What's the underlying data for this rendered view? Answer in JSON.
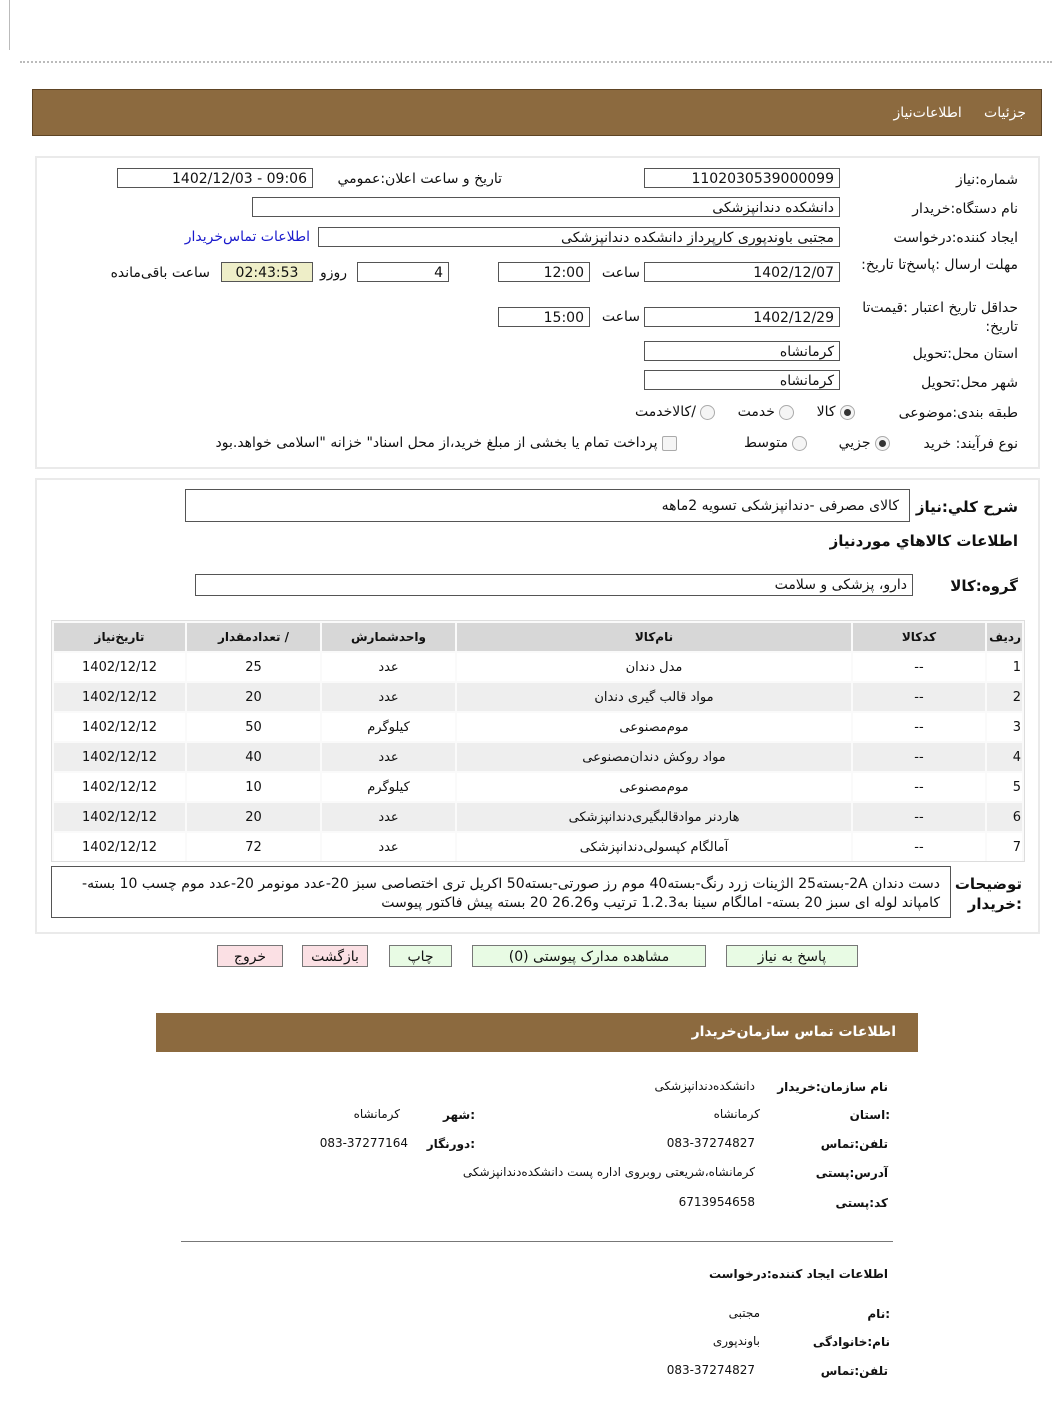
{
  "header": {
    "tabs": [
      "جزئیات",
      "اطلاعات‌نیاز"
    ]
  },
  "form": {
    "need_number_label": "شماره:نیاز",
    "need_number": "1102030539000099",
    "announce_label": "تاریخ و ساعت اعلان:عمومي",
    "announce_value": "1402/12/03 - 09:06",
    "buyer_label": "نام دستگاه:خریدار",
    "buyer": "دانشکده دندانپزشکی",
    "creator_label": "ایجاد کننده:درخواست",
    "creator": "مجتبی  باوندپوری کارپرداز دانشکده دندانپزشکی",
    "contact_link": "اطلاعات تماس‌خریدار",
    "deadline_label": "مهلت ارسال :پاسخ‌تا تاریخ:",
    "deadline_date": "1402/12/07",
    "time_label": "ساعت",
    "deadline_time": "12:00",
    "days": "4",
    "days_label": "روزو",
    "remaining": "02:43:53",
    "remaining_label": "ساعت باقی‌مانده",
    "validity_label": "حداقل تاریخ اعتبار :قیمت‌تا تاریخ:",
    "validity_date": "1402/12/29",
    "validity_time": "15:00",
    "province_label": "استان محل:تحویل",
    "province": "کرمانشاه",
    "city_label": "شهر محل:تحویل",
    "city": "کرمانشاه",
    "category_label": "طبقه بندی:موضوعی",
    "category_options": [
      "کالا",
      "خدمت",
      "/کالاخدمت"
    ],
    "category_selected": "کالا",
    "process_label": "نوع فرآیند: خرید",
    "process_options": [
      "جزیي",
      "متوسط"
    ],
    "process_selected": "جزیي",
    "treasury_text": "پرداخت تمام یا بخشی از مبلغ خرید،از محل اسناد\" خزانه \"اسلامی خواهد.بود",
    "treasury_checked": false
  },
  "summary": {
    "label": "شرح کلي:نیاز",
    "value": "کالای مصرفی -دندانپزشکی تسویه 2ماهه",
    "goods_title": "اطلاعات کالاهاي موردنیاز",
    "group_label": "گروه:کالا",
    "group_value": "دارو، پزشکی و سلامت"
  },
  "table": {
    "headers": [
      "ردیف",
      "کدکالا",
      "نام‌کالا",
      "واحدشمارش",
      "/ تعدادمقدار",
      "تاریخ‌نیاز"
    ],
    "rows": [
      [
        "1",
        "--",
        "مدل دندان",
        "عدد",
        "25",
        "1402/12/12"
      ],
      [
        "2",
        "--",
        "مواد قالب گیری دندان",
        "عدد",
        "20",
        "1402/12/12"
      ],
      [
        "3",
        "--",
        "موم‌مصنوعی",
        "کیلوگرم",
        "50",
        "1402/12/12"
      ],
      [
        "4",
        "--",
        "مواد روکش دندان‌مصنوعی",
        "عدد",
        "40",
        "1402/12/12"
      ],
      [
        "5",
        "--",
        "موم‌مصنوعی",
        "کیلوگرم",
        "10",
        "1402/12/12"
      ],
      [
        "6",
        "--",
        "هاردنر موادقالبگیری‌دندانپزشکی",
        "عدد",
        "20",
        "1402/12/12"
      ],
      [
        "7",
        "--",
        "آمالگام کپسولی‌دندانپزشکی",
        "عدد",
        "72",
        "1402/12/12"
      ]
    ]
  },
  "notes": {
    "label": "توضیحات :خریدار",
    "text": "دست دندان  2A-بسته25 الژینات زرد رنگ-بسته40 موم رز صورتی-بسته50 اکریل تری اختصاصی سبز 20-عدد مونومر 20-عدد موم چسب 10 بسته- کامپاند لوله ای سبز 20 بسته- امالگام سینا به1.2.3 ترتیب و26.26 20 بسته پیش فاکتور پیوست"
  },
  "buttons": {
    "reply": "پاسخ به نیاز",
    "attachments": "مشاهده مدارک پیوستی (0)",
    "print": "چاپ",
    "back": "بازگشت",
    "exit": "خروج"
  },
  "contact": {
    "title": "اطلاعات  تماس سازمان‌خریدار",
    "org_label": "نام سازمان:خریدار",
    "org": "دانشکده‌دندانپزشکی",
    "province_label": ":استان",
    "province": "کرمانشاه",
    "city_label": ":شهر",
    "city": "کرمانشاه",
    "phone_label": "تلفن:تماس",
    "phone": "083-37274827",
    "fax_label": ":دورنگار",
    "fax": "083-37277164",
    "address_label": "آدرس:پستی",
    "address": "کرمانشاه،شریعتی روبروی اداره پست دانشکده‌دندانپزشکی",
    "postal_label": "کد:پستی",
    "postal": "6713954658",
    "creator_title": "اطلاعات ایجاد کننده:درخواست",
    "name_label": ":نام",
    "name": "مجتبی",
    "family_label": "نام:خانوادگی",
    "family": "باوندپوری",
    "creator_phone_label": "تلفن:تماس",
    "creator_phone": "083-37274827"
  },
  "colors": {
    "bar": "#8c6a3f",
    "button_green": "#e8fbe4",
    "button_red": "#fbe0e4",
    "timer_bg": "#eeeec8",
    "link": "#1a1acc"
  }
}
